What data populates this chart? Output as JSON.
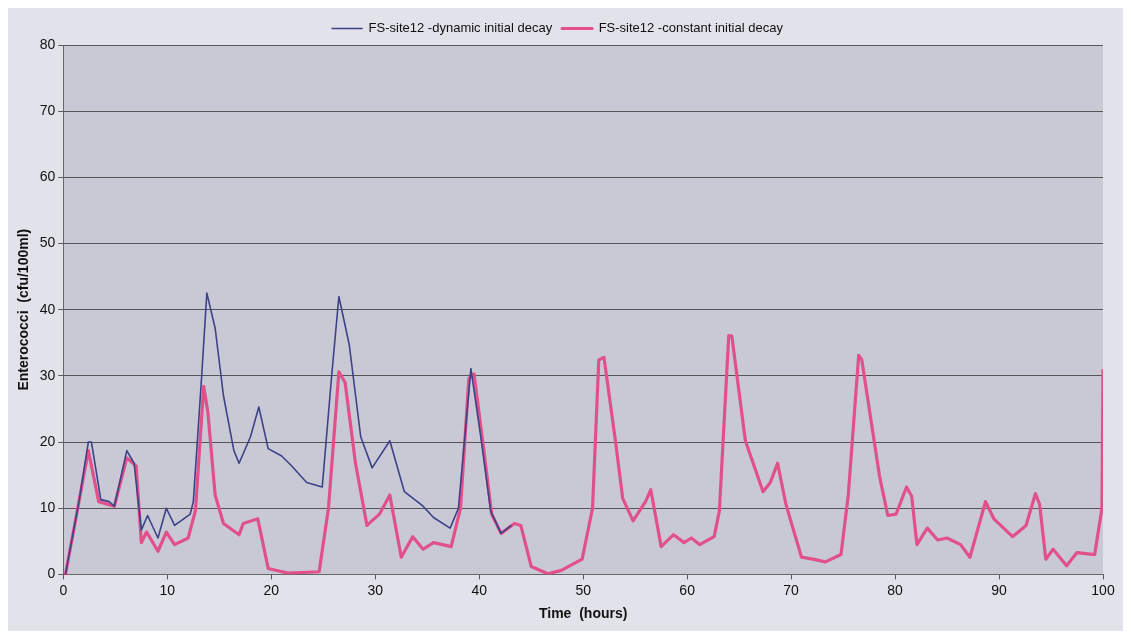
{
  "chart_data": {
    "type": "line",
    "xlabel": "Time  (hours)",
    "ylabel": "Enterococci  (cfu/100ml)",
    "xlim": [
      0,
      100
    ],
    "xticks": [
      0,
      10,
      20,
      30,
      40,
      50,
      60,
      70,
      80,
      90,
      100
    ],
    "ylim": [
      0,
      80
    ],
    "yticks": [
      0,
      10,
      20,
      30,
      40,
      50,
      60,
      70,
      80
    ],
    "grid": "y",
    "legend": "top",
    "marker": "none",
    "line_style": "solid",
    "series": [
      {
        "name": "FS-site12 -dynamic initial decay",
        "color": "#3d4288",
        "x": [
          0.2,
          1.5,
          2.4,
          2.7,
          3.6,
          4.4,
          4.9,
          6.1,
          6.8,
          7.5,
          8.1,
          9.1,
          9.9,
          10.7,
          12.2,
          12.5,
          13.3,
          13.8,
          14.6,
          15.4,
          16.4,
          16.9,
          18,
          18.8,
          19.7,
          21,
          21.9,
          23.4,
          24.9,
          25.8,
          26.5,
          27.5,
          28.6,
          29.7,
          31.4,
          32.8,
          34.6,
          35.6,
          37.2,
          38,
          39.2,
          40.2,
          41.1,
          42.1,
          43.1
        ],
        "values": [
          0,
          11,
          20,
          20,
          11.3,
          11,
          10.3,
          18.7,
          16.8,
          6.7,
          8.9,
          5.5,
          10,
          7.4,
          9.1,
          11,
          29.9,
          42.5,
          37.2,
          27,
          18.7,
          16.8,
          20.8,
          25.3,
          19,
          17.9,
          16.5,
          13.9,
          13.2,
          29.9,
          42,
          34.7,
          20.8,
          16.1,
          20.2,
          12.5,
          10.3,
          8.6,
          7,
          10,
          31.1,
          20.2,
          9.6,
          6.2,
          7.4
        ]
      },
      {
        "name": "FS-site12 -constant initial decay",
        "color": "#e2508a",
        "x": [
          0.2,
          1.5,
          2.4,
          3.4,
          4.9,
          6.1,
          7,
          7.5,
          8,
          9.1,
          9.9,
          10.7,
          12,
          12.7,
          13.5,
          13.9,
          14.6,
          15.4,
          16.9,
          17.3,
          18.7,
          19.7,
          21.6,
          24.6,
          25.5,
          26.5,
          27.1,
          28.1,
          29.2,
          30.4,
          31.4,
          32.5,
          33.6,
          34.6,
          35.6,
          37.3,
          38.2,
          39,
          39.5,
          40.4,
          41.2,
          42.1,
          43.4,
          44,
          45,
          46.6,
          47.9,
          49.9,
          50.9,
          51.5,
          52,
          53.1,
          53.8,
          54.8,
          56,
          56.5,
          57.5,
          58.7,
          59.7,
          60.4,
          61.2,
          62.6,
          63.1,
          64,
          64.3,
          65.6,
          67.3,
          68,
          68.7,
          69.5,
          71,
          72.1,
          73.3,
          74.8,
          75.5,
          76.5,
          76.8,
          78.5,
          79.3,
          80.1,
          81.1,
          81.6,
          82.1,
          83.1,
          84.1,
          85,
          86.3,
          87.2,
          88.7,
          89.5,
          91.3,
          92.6,
          93.5,
          93.9,
          94.5,
          95.2,
          96.5,
          97.5,
          99.2,
          99.9,
          100
        ],
        "values": [
          0,
          11,
          18.7,
          11,
          10.3,
          17.6,
          16.4,
          4.8,
          6.4,
          3.5,
          6.4,
          4.5,
          5.5,
          9.6,
          28.4,
          24.5,
          12,
          7.7,
          6,
          7.7,
          8.4,
          0.9,
          0.2,
          0.4,
          10,
          30.6,
          29,
          16.8,
          7.4,
          9.1,
          12,
          2.6,
          5.7,
          3.8,
          4.8,
          4.2,
          10,
          29.6,
          30.3,
          19.3,
          9.1,
          6.2,
          7.7,
          7.4,
          1.2,
          0.1,
          0.6,
          2.3,
          10,
          32.4,
          32.8,
          20.2,
          11.5,
          8.1,
          11,
          12.8,
          4.2,
          6,
          4.8,
          5.5,
          4.5,
          5.7,
          9.6,
          36.1,
          36,
          20.2,
          12.5,
          13.9,
          16.8,
          10.6,
          2.6,
          2.3,
          1.9,
          3,
          12,
          33.1,
          32.4,
          14.9,
          8.9,
          9.1,
          13.2,
          11.8,
          4.5,
          7,
          5.2,
          5.5,
          4.5,
          2.6,
          11,
          8.4,
          5.7,
          7.4,
          12.2,
          10.6,
          2.3,
          3.8,
          1.3,
          3.3,
          3,
          10,
          31
        ]
      }
    ]
  }
}
